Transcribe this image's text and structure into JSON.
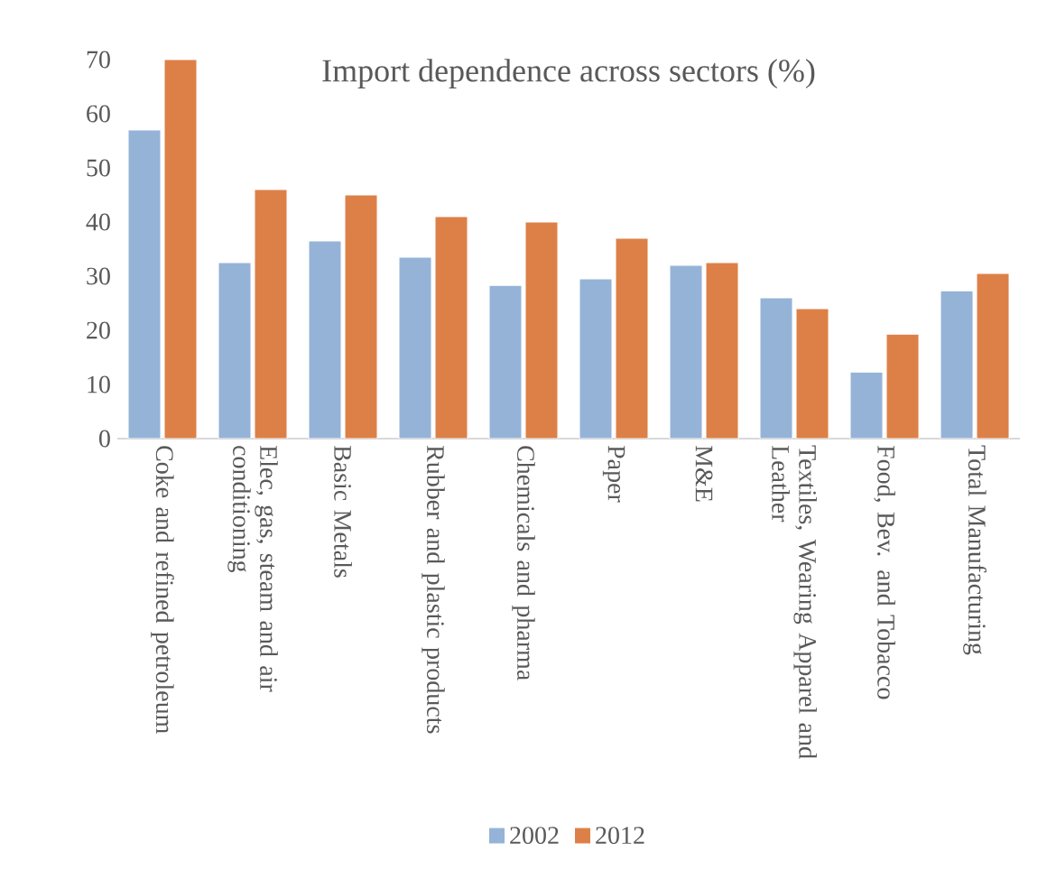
{
  "chart_data": {
    "type": "bar",
    "title": "Import dependence across sectors (%)",
    "categories": [
      "Coke and refined petroleum",
      "Elec, gas, steam and air conditioning",
      "Basic Metals",
      "Rubber and plastic products",
      "Chemicals and pharma",
      "Paper",
      "M&E",
      "Textiles, Wearing Apparel and Leather",
      "Food, Bev. and Tobacco",
      "Total Manufacturing"
    ],
    "series": [
      {
        "name": "2002",
        "color": "#95b3d7",
        "values": [
          57,
          32.5,
          36.5,
          33.5,
          28.3,
          29.5,
          32,
          26,
          12.3,
          27.3
        ]
      },
      {
        "name": "2012",
        "color": "#dd8047",
        "values": [
          70,
          46,
          45,
          41,
          40,
          37,
          32.5,
          24,
          19.3,
          30.5
        ]
      }
    ],
    "ylim": [
      0,
      70
    ],
    "yticks": [
      0,
      10,
      20,
      30,
      40,
      50,
      60,
      70
    ],
    "legend": "bottom"
  }
}
